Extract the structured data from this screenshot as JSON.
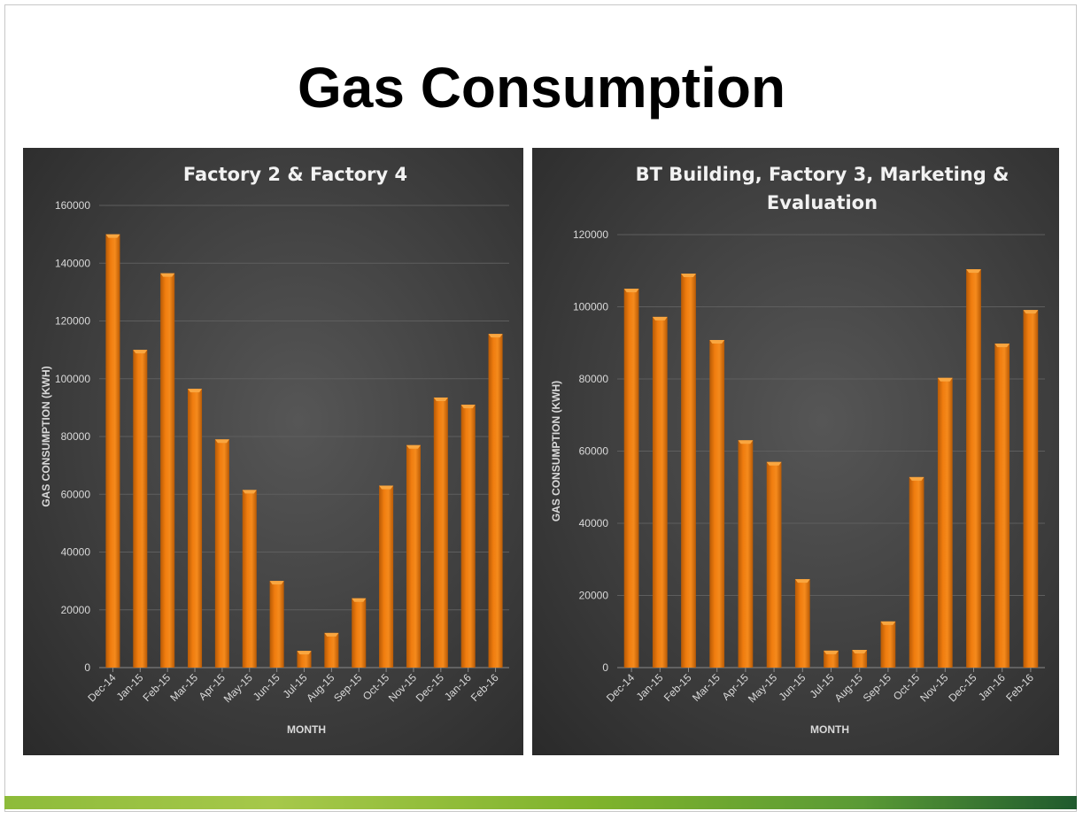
{
  "slide_title": "Gas Consumption",
  "colors": {
    "bar": "#f07d0f",
    "bar_top": "#f9a640",
    "panel": "#404040",
    "grid": "#5e5e5e"
  },
  "chart_data": [
    {
      "type": "bar",
      "title": "Factory 2 & Factory 4",
      "title_lines": [
        "Factory 2 & Factory 4"
      ],
      "xlabel": "MONTH",
      "ylabel": "GAS CONSUMPTION (KWH)",
      "ylim": [
        0,
        160000
      ],
      "yticks": [
        0,
        20000,
        40000,
        60000,
        80000,
        100000,
        120000,
        140000,
        160000
      ],
      "grid": true,
      "categories": [
        "Dec-14",
        "Jan-15",
        "Feb-15",
        "Mar-15",
        "Apr-15",
        "May-15",
        "Jun-15",
        "Jul-15",
        "Aug-15",
        "Sep-15",
        "Oct-15",
        "Nov-15",
        "Dec-15",
        "Jan-16",
        "Feb-16"
      ],
      "values": [
        150000,
        110000,
        136500,
        96500,
        79000,
        61500,
        30000,
        5800,
        12000,
        24000,
        63000,
        77000,
        93500,
        91000,
        115500
      ]
    },
    {
      "type": "bar",
      "title": "BT Building, Factory 3, Marketing & Evaluation",
      "title_lines": [
        "BT Building, Factory 3, Marketing &",
        "Evaluation"
      ],
      "xlabel": "MONTH",
      "ylabel": "GAS CONSUMPTION (KWH)",
      "ylim": [
        0,
        120000
      ],
      "yticks": [
        0,
        20000,
        40000,
        60000,
        80000,
        100000,
        120000
      ],
      "grid": true,
      "categories": [
        "Dec-14",
        "Jan-15",
        "Feb-15",
        "Mar-15",
        "Apr-15",
        "May-15",
        "Jun-15",
        "Jul-15",
        "Aug-15",
        "Sep-15",
        "Oct-15",
        "Nov-15",
        "Dec-15",
        "Jan-16",
        "Feb-16"
      ],
      "values": [
        105000,
        97200,
        109200,
        90800,
        63000,
        57000,
        24500,
        4700,
        4900,
        12800,
        52800,
        80300,
        110400,
        89800,
        99100
      ]
    }
  ]
}
